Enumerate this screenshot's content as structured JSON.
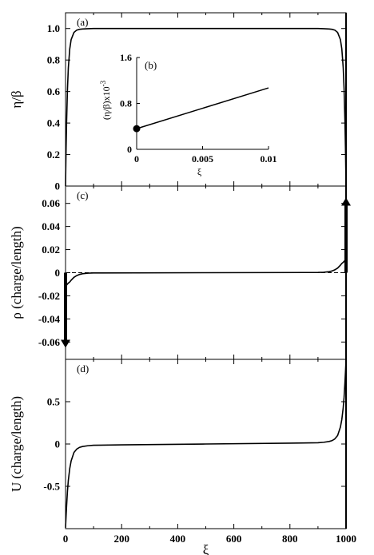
{
  "chart_data": [
    {
      "id": "a",
      "type": "line",
      "panel_label": "(a)",
      "ylabel": "η/β",
      "xlim": [
        0,
        1000
      ],
      "ylim": [
        0,
        1.1
      ],
      "yticks": [
        0,
        0.2,
        0.4,
        0.6,
        0.8,
        1.0
      ],
      "ytick_labels": [
        "0",
        "0.2",
        "0.4",
        "0.6",
        "0.8",
        "1.0"
      ],
      "series": [
        {
          "x": [
            0,
            1,
            2,
            4,
            7,
            10,
            15,
            20,
            30,
            40,
            50,
            60,
            80,
            100,
            500,
            900,
            920,
            940,
            950,
            960,
            970,
            980,
            985,
            990,
            993,
            996,
            998,
            999,
            1000
          ],
          "y": [
            0,
            0.12,
            0.24,
            0.42,
            0.62,
            0.75,
            0.87,
            0.93,
            0.975,
            0.99,
            0.995,
            0.997,
            0.999,
            1.0,
            1.0,
            1.0,
            0.999,
            0.997,
            0.995,
            0.99,
            0.975,
            0.93,
            0.87,
            0.75,
            0.62,
            0.42,
            0.24,
            0.12,
            0
          ]
        }
      ],
      "vlines": [
        1000
      ]
    },
    {
      "id": "b",
      "type": "line",
      "panel_label": "(b)",
      "inset": true,
      "xlabel": "ξ",
      "ylabel": "(η/β)x10",
      "ylabel_exponent": "-3",
      "xlim": [
        0,
        0.01
      ],
      "ylim": [
        0,
        1.6
      ],
      "xticks": [
        0,
        0.005,
        0.01
      ],
      "xtick_labels": [
        "0",
        "0.005",
        "0.01"
      ],
      "yticks": [
        0,
        0.8,
        1.6
      ],
      "ytick_labels": [
        "0",
        "0.8",
        "1.6"
      ],
      "series": [
        {
          "x": [
            0,
            0.01
          ],
          "y": [
            0.36,
            1.07
          ]
        }
      ],
      "marker": {
        "x": 0,
        "y": 0.36
      }
    },
    {
      "id": "c",
      "type": "line",
      "panel_label": "(c)",
      "ylabel": "ρ (charge/length)",
      "xlim": [
        0,
        1000
      ],
      "ylim": [
        -0.075,
        0.075
      ],
      "yticks": [
        -0.06,
        -0.04,
        -0.02,
        0,
        0.02,
        0.04,
        0.06
      ],
      "ytick_labels": [
        "-0.06",
        "-0.04",
        "-0.02",
        "0",
        "0.02",
        "0.04",
        "0.06"
      ],
      "series": [
        {
          "x": [
            0,
            3,
            6,
            10,
            15,
            20,
            30,
            40,
            50,
            60,
            80,
            100,
            500,
            900,
            920,
            940,
            950,
            960,
            970,
            980,
            985,
            990,
            994,
            997,
            1000
          ],
          "y": [
            -0.012,
            -0.011,
            -0.01,
            -0.009,
            -0.008,
            -0.0065,
            -0.004,
            -0.0025,
            -0.0015,
            -0.0009,
            -0.0004,
            -0.0002,
            0,
            0.0002,
            0.0004,
            0.0009,
            0.0015,
            0.0025,
            0.004,
            0.0065,
            0.008,
            0.009,
            0.01,
            0.011,
            0.012
          ]
        }
      ],
      "dashed_zero": true,
      "arrows": [
        {
          "x": 0,
          "from": 0,
          "to": -0.065,
          "direction": "down"
        },
        {
          "x": 1000,
          "from": 0,
          "to": 0.065,
          "direction": "up"
        }
      ],
      "vlines": [
        1000
      ]
    },
    {
      "id": "d",
      "type": "line",
      "panel_label": "(d)",
      "ylabel": "U (charge/length)",
      "xlabel": "ξ",
      "xlim": [
        0,
        1000
      ],
      "ylim": [
        -1.0,
        1.0
      ],
      "xticks": [
        0,
        200,
        400,
        600,
        800,
        1000
      ],
      "xtick_labels": [
        "0",
        "200",
        "400",
        "600",
        "800",
        "1000"
      ],
      "yticks": [
        -0.5,
        0,
        0.5
      ],
      "ytick_labels": [
        "-0.5",
        "0",
        "0.5"
      ],
      "series": [
        {
          "x": [
            0,
            1,
            2,
            4,
            7,
            10,
            15,
            20,
            30,
            40,
            50,
            60,
            80,
            100,
            200,
            500,
            800,
            900,
            920,
            940,
            950,
            960,
            970,
            980,
            985,
            990,
            993,
            996,
            998,
            999,
            1000
          ],
          "y": [
            -0.99,
            -0.92,
            -0.85,
            -0.72,
            -0.55,
            -0.43,
            -0.29,
            -0.2,
            -0.1,
            -0.06,
            -0.04,
            -0.03,
            -0.02,
            -0.015,
            -0.01,
            0,
            0.01,
            0.015,
            0.02,
            0.03,
            0.04,
            0.06,
            0.1,
            0.2,
            0.29,
            0.43,
            0.55,
            0.72,
            0.85,
            0.92,
            0.99
          ]
        }
      ],
      "vlines": [
        1000
      ]
    }
  ]
}
